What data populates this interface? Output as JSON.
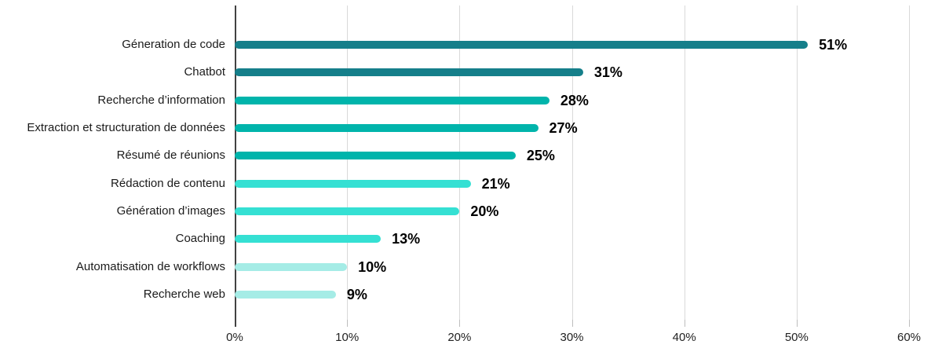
{
  "chart_data": {
    "type": "bar",
    "orientation": "horizontal",
    "categories": [
      "Géneration de code",
      "Chatbot",
      "Recherche d’information",
      "Extraction et structuration de données",
      "Résumé de réunions",
      "Rédaction de contenu",
      "Génération d’images",
      "Coaching",
      "Automatisation de workflows",
      "Recherche web"
    ],
    "values": [
      51,
      31,
      28,
      27,
      25,
      21,
      20,
      13,
      10,
      9
    ],
    "value_labels": [
      "51%",
      "31%",
      "28%",
      "27%",
      "25%",
      "21%",
      "20%",
      "13%",
      "10%",
      "9%"
    ],
    "bar_colors": [
      "#157f8a",
      "#157f8a",
      "#00b4ab",
      "#00b4ab",
      "#00b4ab",
      "#35e0d3",
      "#35e0d3",
      "#35e0d3",
      "#a5ece6",
      "#a5ece6"
    ],
    "x_ticks": [
      "0%",
      "10%",
      "20%",
      "30%",
      "40%",
      "50%",
      "60%"
    ],
    "x_tick_values": [
      0,
      10,
      20,
      30,
      40,
      50,
      60
    ],
    "xlim": [
      0,
      60
    ],
    "grid": "vertical",
    "legend": "none",
    "xlabel": "",
    "ylabel": ""
  },
  "colors": {
    "background": "#ffffff",
    "axis_line": "#424242",
    "gridline": "#d9d9d9",
    "tick": "#bdbdbd",
    "category_label": "#1b1b1b",
    "value_label": "#000000",
    "tick_label": "#222222"
  }
}
